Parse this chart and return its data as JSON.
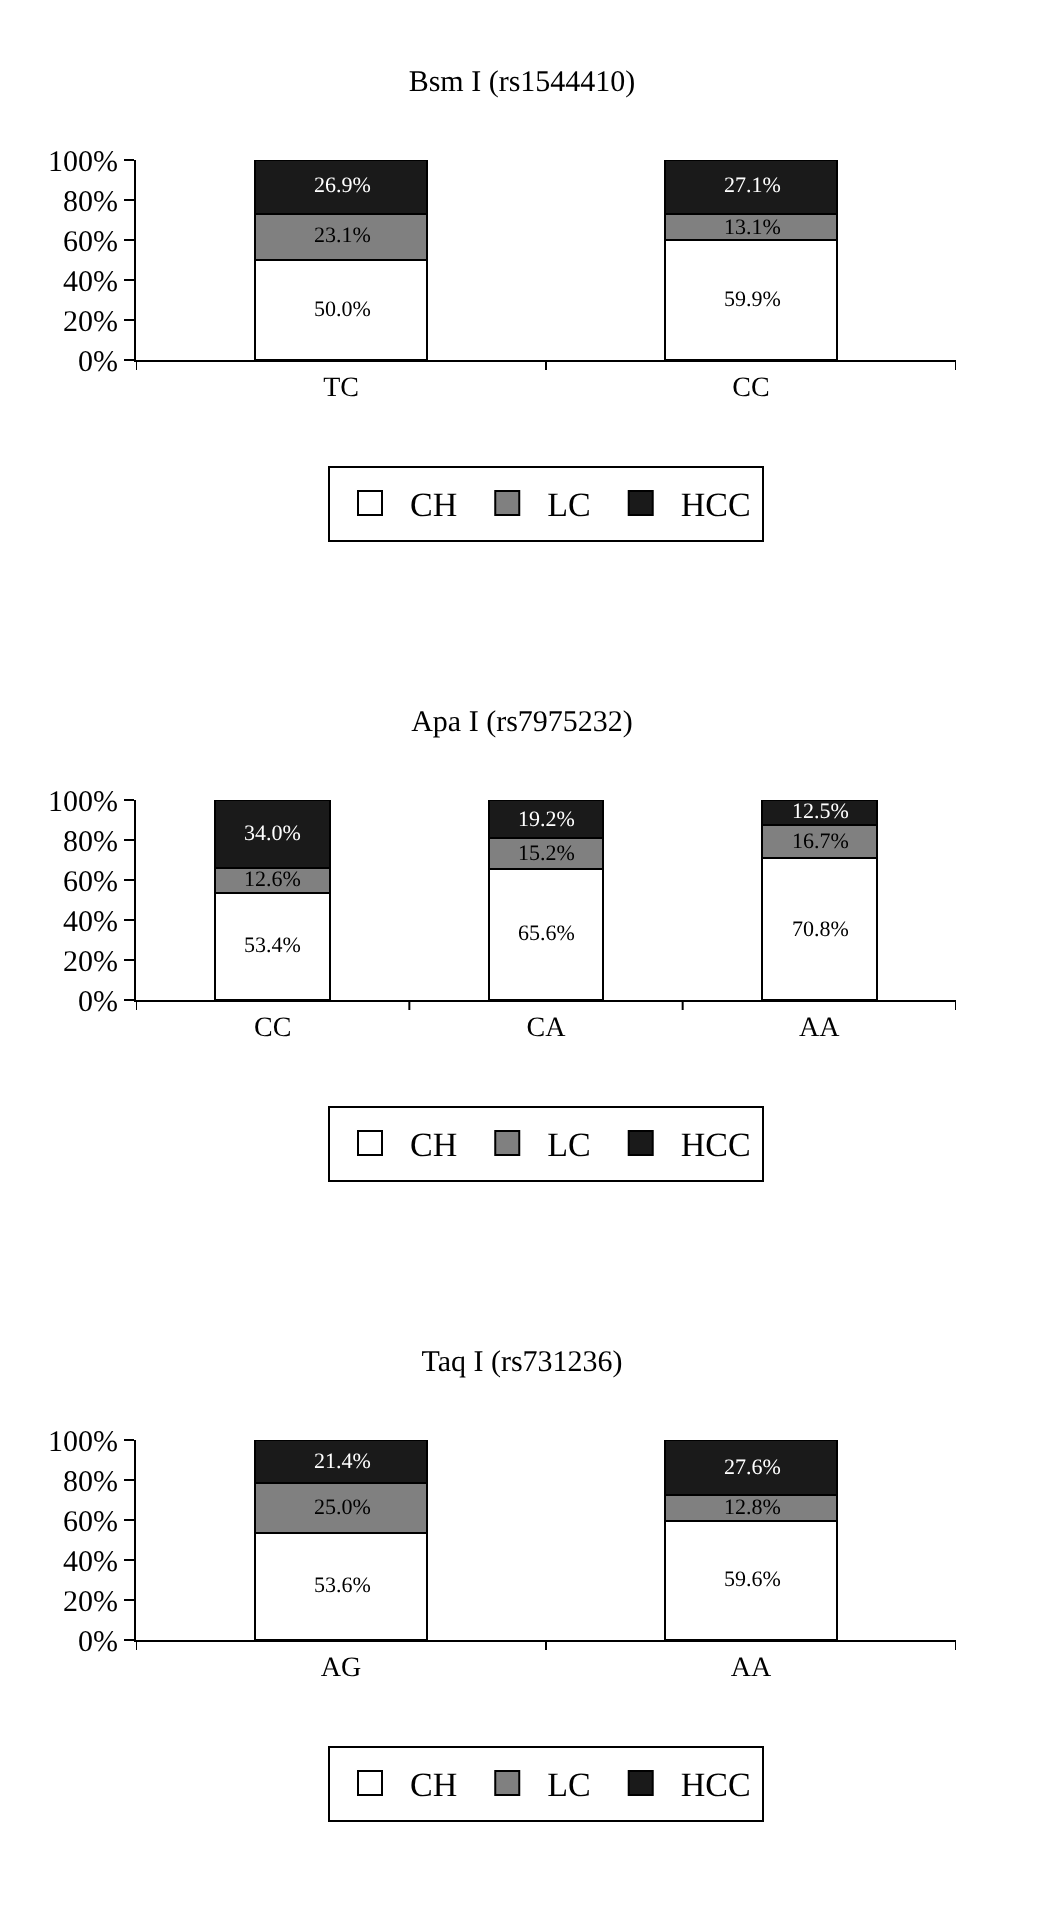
{
  "chart_data": [
    {
      "type": "bar",
      "title": "Bsm I (rs1544410)",
      "categories": [
        "TC",
        "CC"
      ],
      "stacked": true,
      "legend": "bottom",
      "grid": false,
      "ylim": [
        0,
        100
      ],
      "yticks": [
        {
          "value": 0,
          "label": "0%"
        },
        {
          "value": 20,
          "label": "20%"
        },
        {
          "value": 40,
          "label": "40%"
        },
        {
          "value": 60,
          "label": "60%"
        },
        {
          "value": 80,
          "label": "80%"
        },
        {
          "value": 100,
          "label": "100%"
        }
      ],
      "series": [
        {
          "name": "CH",
          "color": "#ffffff",
          "values": [
            50.0,
            59.9
          ],
          "value_labels": [
            "50.0%",
            "59.9%"
          ]
        },
        {
          "name": "LC",
          "color": "#808080",
          "values": [
            23.1,
            13.1
          ],
          "value_labels": [
            "23.1%",
            "13.1%"
          ]
        },
        {
          "name": "HCC",
          "color": "#1a1a1a",
          "values": [
            26.9,
            27.1
          ],
          "value_labels": [
            "26.9%",
            "27.1%"
          ]
        }
      ]
    },
    {
      "type": "bar",
      "title": "Apa I (rs7975232)",
      "categories": [
        "CC",
        "CA",
        "AA"
      ],
      "stacked": true,
      "legend": "bottom",
      "grid": false,
      "ylim": [
        0,
        100
      ],
      "yticks": [
        {
          "value": 0,
          "label": "0%"
        },
        {
          "value": 20,
          "label": "20%"
        },
        {
          "value": 40,
          "label": "40%"
        },
        {
          "value": 60,
          "label": "60%"
        },
        {
          "value": 80,
          "label": "80%"
        },
        {
          "value": 100,
          "label": "100%"
        }
      ],
      "series": [
        {
          "name": "CH",
          "color": "#ffffff",
          "values": [
            53.4,
            65.6,
            70.8
          ],
          "value_labels": [
            "53.4%",
            "65.6%",
            "70.8%"
          ]
        },
        {
          "name": "LC",
          "color": "#808080",
          "values": [
            12.6,
            15.2,
            16.7
          ],
          "value_labels": [
            "12.6%",
            "15.2%",
            "16.7%"
          ]
        },
        {
          "name": "HCC",
          "color": "#1a1a1a",
          "values": [
            34.0,
            19.2,
            12.5
          ],
          "value_labels": [
            "34.0%",
            "19.2%",
            "12.5%"
          ]
        }
      ]
    },
    {
      "type": "bar",
      "title": "Taq I (rs731236)",
      "categories": [
        "AG",
        "AA"
      ],
      "stacked": true,
      "legend": "bottom",
      "grid": false,
      "ylim": [
        0,
        100
      ],
      "yticks": [
        {
          "value": 0,
          "label": "0%"
        },
        {
          "value": 20,
          "label": "20%"
        },
        {
          "value": 40,
          "label": "40%"
        },
        {
          "value": 60,
          "label": "60%"
        },
        {
          "value": 80,
          "label": "80%"
        },
        {
          "value": 100,
          "label": "100%"
        }
      ],
      "series": [
        {
          "name": "CH",
          "color": "#ffffff",
          "values": [
            53.6,
            59.6
          ],
          "value_labels": [
            "53.6%",
            "59.6%"
          ]
        },
        {
          "name": "LC",
          "color": "#808080",
          "values": [
            25.0,
            12.8
          ],
          "value_labels": [
            "25.0%",
            "12.8%"
          ]
        },
        {
          "name": "HCC",
          "color": "#1a1a1a",
          "values": [
            21.4,
            27.6
          ],
          "value_labels": [
            "21.4%",
            "27.6%"
          ]
        }
      ]
    }
  ]
}
